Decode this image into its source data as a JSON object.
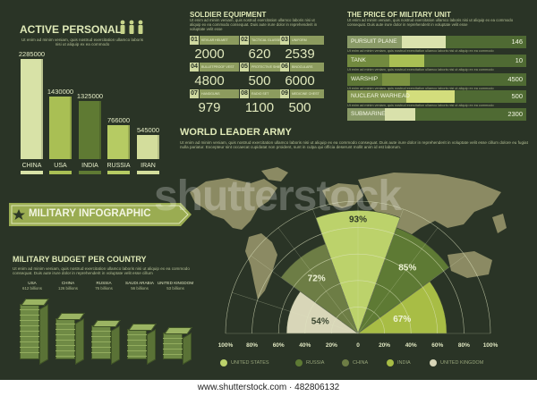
{
  "active_personal": {
    "title": "ACTIVE PERSONAL",
    "body": "Ut enim ad minim veniam, quis nostrud exercitation ullamco laboris nisi ut aliquip ex ea commodo",
    "bars": [
      {
        "country": "CHINA",
        "value": 2285000,
        "label": "2285000",
        "color": "#d8e2a7"
      },
      {
        "country": "USA",
        "value": 1430000,
        "label": "1430000",
        "color": "#a9bf54"
      },
      {
        "country": "INDIA",
        "value": 1325000,
        "label": "1325000",
        "color": "#5f7a33"
      },
      {
        "country": "RUSSIA",
        "value": 766000,
        "label": "766000",
        "color": "#b6cb63"
      },
      {
        "country": "IRAN",
        "value": 545000,
        "label": "545000",
        "color": "#d3dd9c"
      }
    ]
  },
  "soldier_equipment": {
    "title": "SOLDIER EQUIPMENT",
    "body": "Ut enim ad minim veniam, quis nostrud exercitation ullamco laboris nisi ut aliquip ex ea commodo consequat. Duis aute irure dolor in reprehenderit in voluptate velit esse",
    "items": [
      {
        "num": "01",
        "name": "KEVLAR HELMET",
        "value": "2000"
      },
      {
        "num": "02",
        "name": "TACTICAL GLASSES",
        "value": "620"
      },
      {
        "num": "03",
        "name": "UNIFORM",
        "value": "2539"
      },
      {
        "num": "04",
        "name": "BULLETPROOF VEST",
        "value": "4800"
      },
      {
        "num": "05",
        "name": "PROTECTIVE SHIELDS",
        "value": "500"
      },
      {
        "num": "06",
        "name": "BINOCULARS",
        "value": "6000"
      },
      {
        "num": "07",
        "name": "HANDGUNS",
        "value": "979"
      },
      {
        "num": "08",
        "name": "RADIO SET",
        "value": "1100"
      },
      {
        "num": "09",
        "name": "MEDICINE CHEST",
        "value": "500"
      }
    ]
  },
  "price_unit": {
    "title": "THE PRICE OF MILITARY UNIT",
    "body": "Ut enim ad minim veniam, quis nostrud exercitation ullamco laboris nisi ut aliquip ex ea commodo consequat. Duis aute irure dolor in reprehenderit in voluptate velit esse",
    "sep_text": "Ut enim ad minim veniam, quis nostrud exercitation ullamco laboris nisi ut aliquip ex ea commodo",
    "rows": [
      {
        "name": "PURSUIT PLANE",
        "value": 146,
        "label": "146",
        "fraction": 0.55,
        "color": "#dbe3ad"
      },
      {
        "name": "TANK",
        "value": 10,
        "label": "10",
        "fraction": 0.43,
        "color": "#a9bf54"
      },
      {
        "name": "WARSHIP",
        "value": 4500,
        "label": "4500",
        "fraction": 0.35,
        "color": "#7b9241"
      },
      {
        "name": "NUCLEAR WARHEAD",
        "value": 500,
        "label": "500",
        "fraction": 0.6,
        "color": "#d3dd7c"
      },
      {
        "name": "SUBMARINE",
        "value": 2300,
        "label": "2300",
        "fraction": 0.38,
        "color": "#d9e1ab"
      }
    ]
  },
  "world_army": {
    "title": "WORLD LEADER ARMY",
    "body": "Ut enim ad minim veniam, quis nostrud exercitation ullamco laboris nisi ut aliquip ex ea commodo consequat. Duis aute irure dolor in reprehenderit in voluptate velit esse cillum dolore eu fugiat nulla pariatur. Excepteur sint occaecat cupidatat non proident, sunt in culpa qui officia deserunt mollit anim id est laborum.",
    "axis_ticks": [
      "100%",
      "80%",
      "60%",
      "40%",
      "20%",
      "0",
      "20%",
      "40%",
      "60%",
      "80%",
      "100%"
    ],
    "legend": [
      {
        "name": "UNITED STATES",
        "color": "#bcd26b"
      },
      {
        "name": "RUSSIA",
        "color": "#5e7a34"
      },
      {
        "name": "CHINA",
        "color": "#6d7d45"
      },
      {
        "name": "INDIA",
        "color": "#a8bd45"
      },
      {
        "name": "UNITED KINGDOM",
        "color": "#d8d6b8"
      }
    ],
    "segments": [
      {
        "label": "93%",
        "value": 93,
        "color": "#bcd26b"
      },
      {
        "label": "85%",
        "value": 85,
        "color": "#5e7a34"
      },
      {
        "label": "72%",
        "value": 72,
        "color": "#6d7d45"
      },
      {
        "label": "67%",
        "value": 67,
        "color": "#a8bd45"
      },
      {
        "label": "54%",
        "value": 54,
        "color": "#d8d6b8"
      }
    ]
  },
  "banner": {
    "text": "MILITARY INFOGRAPHIC",
    "icon": "star-icon"
  },
  "budget": {
    "title": "MILITARY BUDGET PER COUNTRY",
    "body": "Ut enim ad minim veniam, quis nostrud exercitation ullamco laboris nisi ut aliquip ex ea commodo consequat. Duis aute irure dolor in reprehenderit in voluptate velit esse cillum",
    "countries": [
      {
        "country": "USA",
        "amount": "612 billions",
        "value": 612
      },
      {
        "country": "CHINA",
        "amount": "126 billions",
        "value": 126
      },
      {
        "country": "RUSSIA",
        "amount": "76 billions",
        "value": 76
      },
      {
        "country": "SAUDI ARABIA",
        "amount": "56 billions",
        "value": 56
      },
      {
        "country": "UNITED KINGDOM",
        "amount": "53 billions",
        "value": 53
      }
    ]
  },
  "watermark": "shutterstock",
  "footer": "www.shutterstock.com · 482806132",
  "colors": {
    "background": "#2a3426",
    "accent": "#dfe9b7",
    "map": "#8b8a63"
  }
}
